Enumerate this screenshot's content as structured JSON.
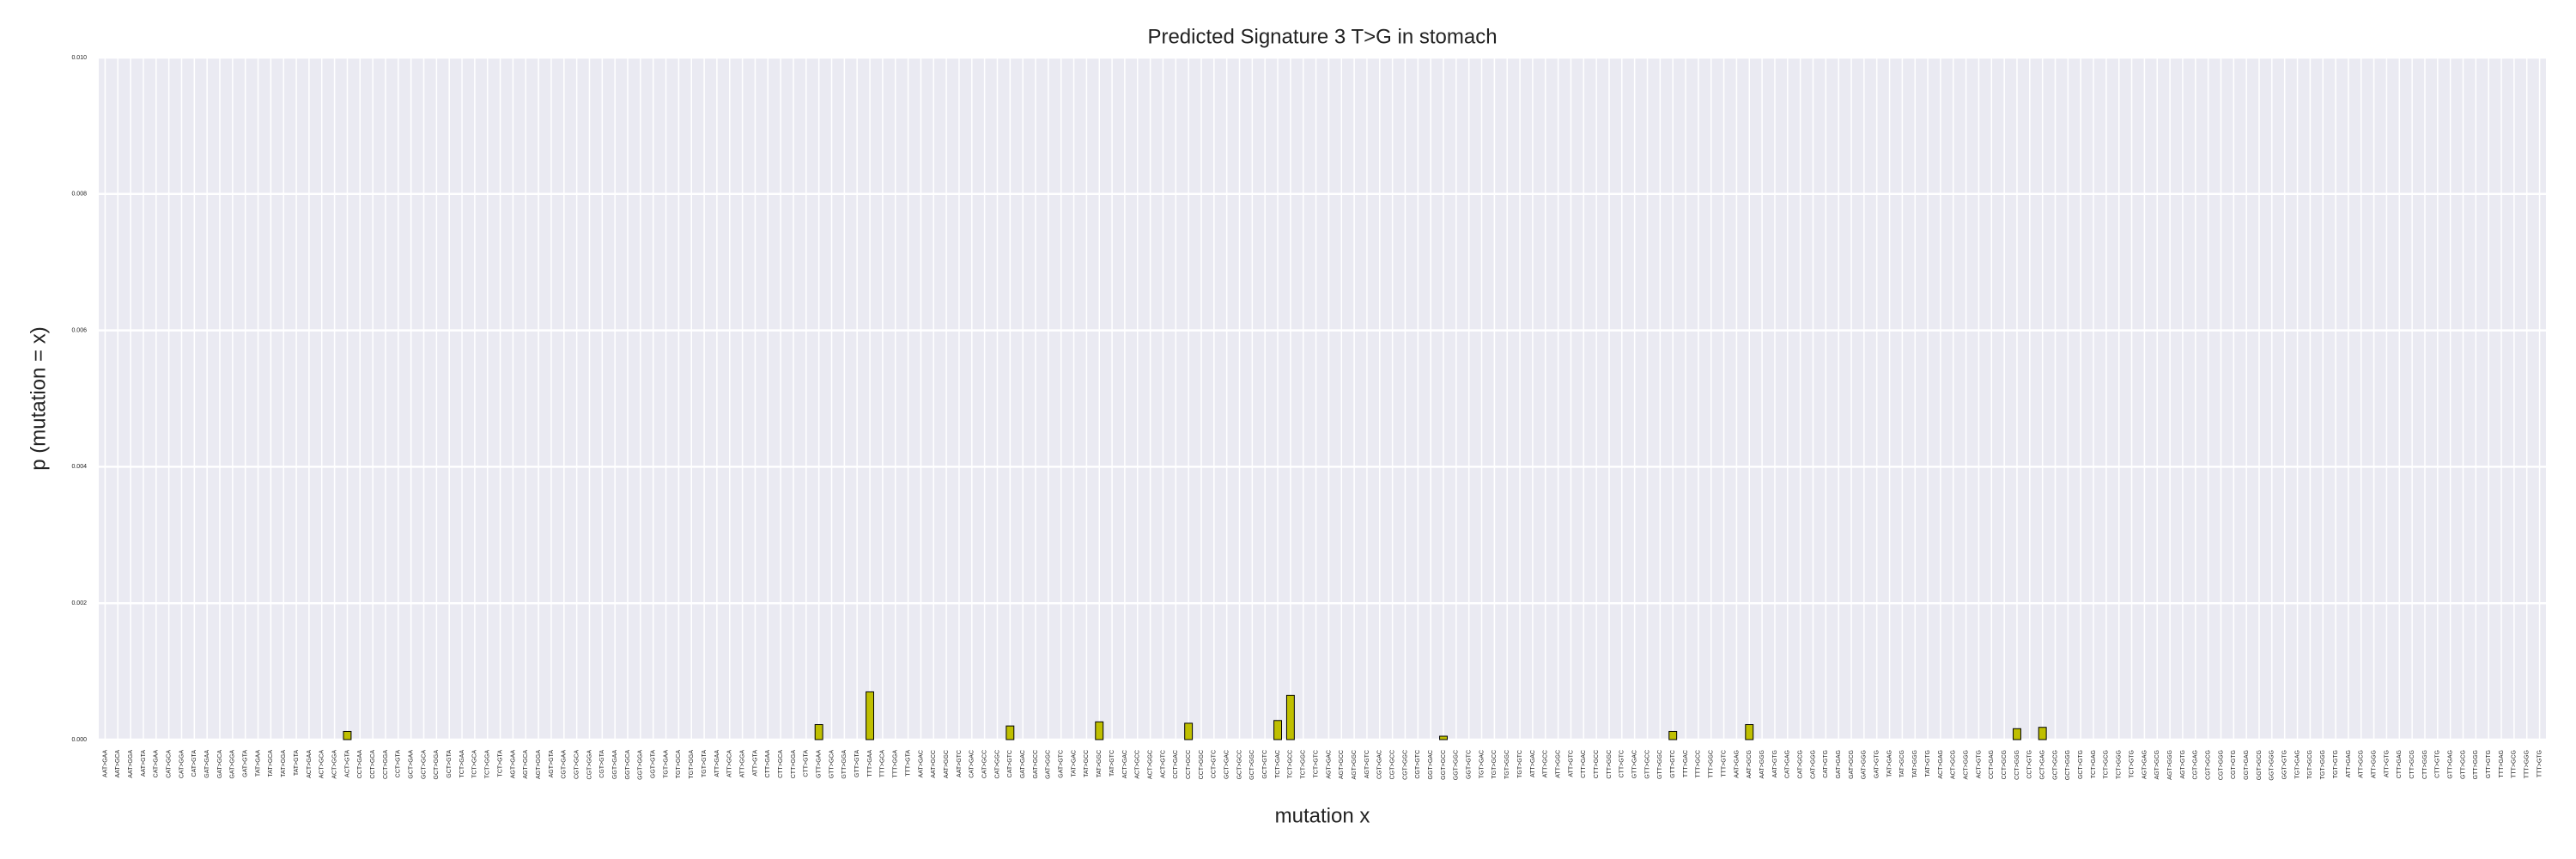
{
  "chart_data": {
    "type": "bar",
    "title": "Predicted Signature 3 T>G in stomach",
    "xlabel": "mutation x",
    "ylabel": "p (mutation = x)",
    "categories": [
      "AAT>GAA",
      "AAT>GCA",
      "AAT>GGA",
      "AAT>GTA",
      "CAT>GAA",
      "CAT>GCA",
      "CAT>GGA",
      "CAT>GTA",
      "GAT>GAA",
      "GAT>GCA",
      "GAT>GGA",
      "GAT>GTA",
      "TAT>GAA",
      "TAT>GCA",
      "TAT>GGA",
      "TAT>GTA",
      "ACT>GAA",
      "ACT>GCA",
      "ACT>GGA",
      "ACT>GTA",
      "CCT>GAA",
      "CCT>GCA",
      "CCT>GGA",
      "CCT>GTA",
      "GCT>GAA",
      "GCT>GCA",
      "GCT>GGA",
      "GCT>GTA",
      "TCT>GAA",
      "TCT>GCA",
      "TCT>GGA",
      "TCT>GTA",
      "AGT>GAA",
      "AGT>GCA",
      "AGT>GGA",
      "AGT>GTA",
      "CGT>GAA",
      "CGT>GCA",
      "CGT>GGA",
      "CGT>GTA",
      "GGT>GAA",
      "GGT>GCA",
      "GGT>GGA",
      "GGT>GTA",
      "TGT>GAA",
      "TGT>GCA",
      "TGT>GGA",
      "TGT>GTA",
      "ATT>GAA",
      "ATT>GCA",
      "ATT>GGA",
      "ATT>GTA",
      "CTT>GAA",
      "CTT>GCA",
      "CTT>GGA",
      "CTT>GTA",
      "GTT>GAA",
      "GTT>GCA",
      "GTT>GGA",
      "GTT>GTA",
      "TTT>GAA",
      "TTT>GCA",
      "TTT>GGA",
      "TTT>GTA",
      "AAT>GAC",
      "AAT>GCC",
      "AAT>GGC",
      "AAT>GTC",
      "CAT>GAC",
      "CAT>GCC",
      "CAT>GGC",
      "CAT>GTC",
      "GAT>GAC",
      "GAT>GCC",
      "GAT>GGC",
      "GAT>GTC",
      "TAT>GAC",
      "TAT>GCC",
      "TAT>GGC",
      "TAT>GTC",
      "ACT>GAC",
      "ACT>GCC",
      "ACT>GGC",
      "ACT>GTC",
      "CCT>GAC",
      "CCT>GCC",
      "CCT>GGC",
      "CCT>GTC",
      "GCT>GAC",
      "GCT>GCC",
      "GCT>GGC",
      "GCT>GTC",
      "TCT>GAC",
      "TCT>GCC",
      "TCT>GGC",
      "TCT>GTC",
      "AGT>GAC",
      "AGT>GCC",
      "AGT>GGC",
      "AGT>GTC",
      "CGT>GAC",
      "CGT>GCC",
      "CGT>GGC",
      "CGT>GTC",
      "GGT>GAC",
      "GGT>GCC",
      "GGT>GGC",
      "GGT>GTC",
      "TGT>GAC",
      "TGT>GCC",
      "TGT>GGC",
      "TGT>GTC",
      "ATT>GAC",
      "ATT>GCC",
      "ATT>GGC",
      "ATT>GTC",
      "CTT>GAC",
      "CTT>GCC",
      "CTT>GGC",
      "CTT>GTC",
      "GTT>GAC",
      "GTT>GCC",
      "GTT>GGC",
      "GTT>GTC",
      "TTT>GAC",
      "TTT>GCC",
      "TTT>GGC",
      "TTT>GTC",
      "AAT>GAG",
      "AAT>GCG",
      "AAT>GGG",
      "AAT>GTG",
      "CAT>GAG",
      "CAT>GCG",
      "CAT>GGG",
      "CAT>GTG",
      "GAT>GAG",
      "GAT>GCG",
      "GAT>GGG",
      "GAT>GTG",
      "TAT>GAG",
      "TAT>GCG",
      "TAT>GGG",
      "TAT>GTG",
      "ACT>GAG",
      "ACT>GCG",
      "ACT>GGG",
      "ACT>GTG",
      "CCT>GAG",
      "CCT>GCG",
      "CCT>GGG",
      "CCT>GTG",
      "GCT>GAG",
      "GCT>GCG",
      "GCT>GGG",
      "GCT>GTG",
      "TCT>GAG",
      "TCT>GCG",
      "TCT>GGG",
      "TCT>GTG",
      "AGT>GAG",
      "AGT>GCG",
      "AGT>GGG",
      "AGT>GTG",
      "CGT>GAG",
      "CGT>GCG",
      "CGT>GGG",
      "CGT>GTG",
      "GGT>GAG",
      "GGT>GCG",
      "GGT>GGG",
      "GGT>GTG",
      "TGT>GAG",
      "TGT>GCG",
      "TGT>GGG",
      "TGT>GTG",
      "ATT>GAG",
      "ATT>GCG",
      "ATT>GGG",
      "ATT>GTG",
      "CTT>GAG",
      "CTT>GCG",
      "CTT>GGG",
      "CTT>GTG",
      "GTT>GAG",
      "GTT>GCG",
      "GTT>GGG",
      "GTT>GTG",
      "TTT>GAG",
      "TTT>GCG",
      "TTT>GGG",
      "TTT>GTG"
    ],
    "values": [
      0,
      0,
      0,
      0,
      0,
      0,
      0,
      0,
      0,
      0,
      0,
      0,
      0,
      0,
      0,
      0,
      0,
      0,
      0,
      0.00012,
      0,
      0,
      0,
      0,
      0,
      0,
      0,
      0,
      0,
      0,
      0,
      0,
      0,
      0,
      0,
      0,
      0,
      0,
      0,
      0,
      0,
      0,
      0,
      0,
      0,
      0,
      0,
      0,
      0,
      0,
      0,
      0,
      0,
      0,
      0,
      0,
      0.00022,
      0,
      0,
      0,
      0.0007,
      0,
      0,
      0,
      0,
      0,
      0,
      0,
      0,
      0,
      0,
      0.0002,
      0,
      0,
      0,
      0,
      0,
      0,
      0.00026,
      0,
      0,
      0,
      0,
      0,
      0,
      0.00024,
      0,
      0,
      0,
      0,
      0,
      0,
      0.00028,
      0.00065,
      0,
      0,
      0,
      0,
      0,
      0,
      0,
      0,
      0,
      0,
      0,
      5e-05,
      0,
      0,
      0,
      0,
      0,
      0,
      0,
      0,
      0,
      0,
      0,
      0,
      0,
      0,
      0,
      0,
      0,
      0.00012,
      0,
      0,
      0,
      0,
      0,
      0.00022,
      0,
      0,
      0,
      0,
      0,
      0,
      0,
      0,
      0,
      0,
      0,
      0,
      0,
      0,
      0,
      0,
      0,
      0,
      0,
      0,
      0.00016,
      0,
      0.00018,
      0,
      0,
      0,
      0,
      0,
      0,
      0,
      0,
      0,
      0,
      0,
      0,
      0,
      0,
      0,
      0,
      0,
      0,
      0,
      0,
      0,
      0,
      0,
      0,
      0,
      0,
      0,
      0,
      0,
      0,
      0,
      0,
      0,
      0,
      0,
      0,
      0,
      0,
      0
    ],
    "color": "#bfbf00",
    "ylim": [
      0,
      0.01
    ],
    "yticks": [
      {
        "value": 0,
        "label": "0.000"
      },
      {
        "value": 0.002,
        "label": "0.002"
      },
      {
        "value": 0.004,
        "label": "0.004"
      },
      {
        "value": 0.006,
        "label": "0.006"
      },
      {
        "value": 0.008,
        "label": "0.008"
      },
      {
        "value": 0.01,
        "label": "0.010"
      }
    ],
    "grid": true
  }
}
